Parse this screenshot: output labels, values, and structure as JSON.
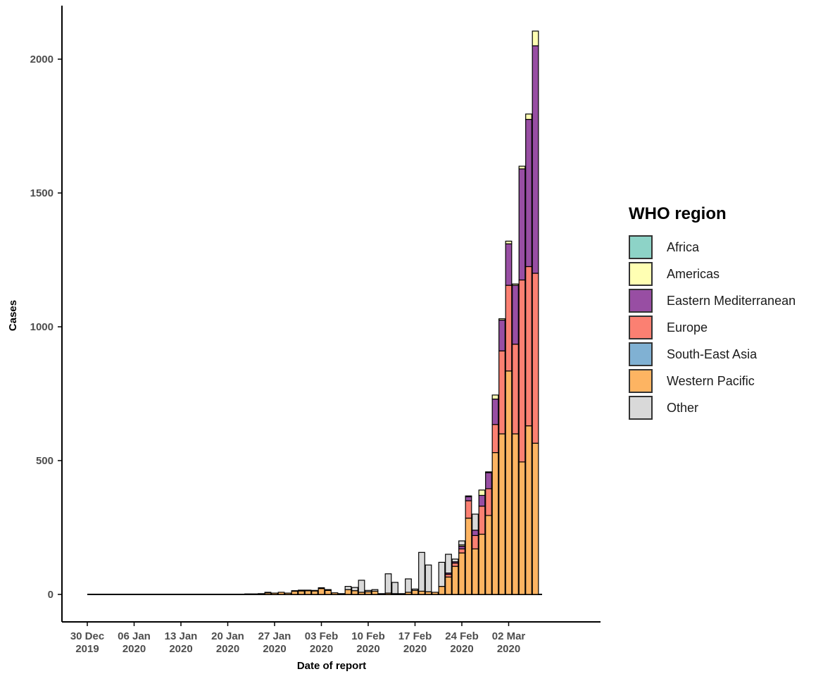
{
  "chart_data": {
    "type": "bar",
    "stacked": true,
    "xlabel": "Date of report",
    "ylabel": "Cases",
    "ylim": [
      -100,
      2200
    ],
    "yticks": [
      0,
      500,
      1000,
      1500,
      2000
    ],
    "xticks": [
      {
        "date": "2019-12-30",
        "line1": "30 Dec",
        "line2": "2019"
      },
      {
        "date": "2020-01-06",
        "line1": "06 Jan",
        "line2": "2020"
      },
      {
        "date": "2020-01-13",
        "line1": "13 Jan",
        "line2": "2020"
      },
      {
        "date": "2020-01-20",
        "line1": "20 Jan",
        "line2": "2020"
      },
      {
        "date": "2020-01-27",
        "line1": "27 Jan",
        "line2": "2020"
      },
      {
        "date": "2020-02-03",
        "line1": "03 Feb",
        "line2": "2020"
      },
      {
        "date": "2020-02-10",
        "line1": "10 Feb",
        "line2": "2020"
      },
      {
        "date": "2020-02-17",
        "line1": "17 Feb",
        "line2": "2020"
      },
      {
        "date": "2020-02-24",
        "line1": "24 Feb",
        "line2": "2020"
      },
      {
        "date": "2020-03-02",
        "line1": "02 Mar",
        "line2": "2020"
      }
    ],
    "legend_title": "WHO region",
    "legend_position": "right",
    "series": [
      {
        "name": "Africa",
        "color": "#8dd3c7"
      },
      {
        "name": "Americas",
        "color": "#ffffb3"
      },
      {
        "name": "Eastern Mediterranean",
        "color": "#984ea3"
      },
      {
        "name": "Europe",
        "color": "#fb8072"
      },
      {
        "name": "South-East Asia",
        "color": "#80b1d3"
      },
      {
        "name": "Western Pacific",
        "color": "#fdb462"
      },
      {
        "name": "Other",
        "color": "#d9d9d9"
      }
    ],
    "stack_order": [
      "Western Pacific",
      "South-East Asia",
      "Europe",
      "Eastern Mediterranean",
      "Americas",
      "Africa",
      "Other"
    ],
    "bars": [
      {
        "date": "2019-12-31",
        "values": {
          "Western Pacific": 1
        }
      },
      {
        "date": "2020-01-01",
        "values": {
          "Western Pacific": 1
        }
      },
      {
        "date": "2020-01-02",
        "values": {
          "Western Pacific": 1
        }
      },
      {
        "date": "2020-01-03",
        "values": {
          "Western Pacific": 1
        }
      },
      {
        "date": "2020-01-04",
        "values": {
          "Western Pacific": 1
        }
      },
      {
        "date": "2020-01-05",
        "values": {
          "Western Pacific": 1
        }
      },
      {
        "date": "2020-01-06",
        "values": {
          "Western Pacific": 1
        }
      },
      {
        "date": "2020-01-07",
        "values": {
          "Western Pacific": 1
        }
      },
      {
        "date": "2020-01-08",
        "values": {
          "Western Pacific": 1
        }
      },
      {
        "date": "2020-01-09",
        "values": {
          "Western Pacific": 1
        }
      },
      {
        "date": "2020-01-10",
        "values": {
          "Western Pacific": 1
        }
      },
      {
        "date": "2020-01-11",
        "values": {
          "Western Pacific": 1
        }
      },
      {
        "date": "2020-01-12",
        "values": {
          "Western Pacific": 1
        }
      },
      {
        "date": "2020-01-13",
        "values": {
          "Western Pacific": 1
        }
      },
      {
        "date": "2020-01-14",
        "values": {
          "Western Pacific": 1
        }
      },
      {
        "date": "2020-01-15",
        "values": {
          "Western Pacific": 1
        }
      },
      {
        "date": "2020-01-16",
        "values": {
          "Western Pacific": 1
        }
      },
      {
        "date": "2020-01-17",
        "values": {
          "Western Pacific": 1
        }
      },
      {
        "date": "2020-01-18",
        "values": {
          "Western Pacific": 1
        }
      },
      {
        "date": "2020-01-19",
        "values": {
          "Western Pacific": 1
        }
      },
      {
        "date": "2020-01-20",
        "values": {
          "Western Pacific": 1
        }
      },
      {
        "date": "2020-01-21",
        "values": {
          "Western Pacific": 1
        }
      },
      {
        "date": "2020-01-22",
        "values": {
          "Western Pacific": 1
        }
      },
      {
        "date": "2020-01-23",
        "values": {
          "Western Pacific": 2
        }
      },
      {
        "date": "2020-01-24",
        "values": {
          "Western Pacific": 2
        }
      },
      {
        "date": "2020-01-25",
        "values": {
          "Western Pacific": 3
        }
      },
      {
        "date": "2020-01-26",
        "values": {
          "Western Pacific": 6,
          "Other": 2
        }
      },
      {
        "date": "2020-01-27",
        "values": {
          "Western Pacific": 5
        }
      },
      {
        "date": "2020-01-28",
        "values": {
          "Western Pacific": 8
        }
      },
      {
        "date": "2020-01-29",
        "values": {
          "Western Pacific": 5
        }
      },
      {
        "date": "2020-01-30",
        "values": {
          "Western Pacific": 12,
          "Other": 2
        }
      },
      {
        "date": "2020-01-31",
        "values": {
          "Western Pacific": 13,
          "Other": 3
        }
      },
      {
        "date": "2020-02-01",
        "values": {
          "Western Pacific": 14,
          "Other": 2
        }
      },
      {
        "date": "2020-02-02",
        "values": {
          "Western Pacific": 13,
          "Other": 2
        }
      },
      {
        "date": "2020-02-03",
        "values": {
          "Western Pacific": 22,
          "Other": 3
        }
      },
      {
        "date": "2020-02-04",
        "values": {
          "Western Pacific": 15,
          "Other": 3
        }
      },
      {
        "date": "2020-02-05",
        "values": {
          "Western Pacific": 6
        }
      },
      {
        "date": "2020-02-06",
        "values": {
          "Western Pacific": 3
        }
      },
      {
        "date": "2020-02-07",
        "values": {
          "Western Pacific": 18,
          "Other": 12
        }
      },
      {
        "date": "2020-02-08",
        "values": {
          "Western Pacific": 14,
          "Other": 12
        }
      },
      {
        "date": "2020-02-09",
        "values": {
          "Western Pacific": 8,
          "Other": 45
        }
      },
      {
        "date": "2020-02-10",
        "values": {
          "Western Pacific": 10,
          "Other": 5
        }
      },
      {
        "date": "2020-02-11",
        "values": {
          "Western Pacific": 12,
          "Other": 6
        }
      },
      {
        "date": "2020-02-12",
        "values": {
          "Western Pacific": 3
        }
      },
      {
        "date": "2020-02-13",
        "values": {
          "Western Pacific": 5,
          "Other": 72
        }
      },
      {
        "date": "2020-02-14",
        "values": {
          "Western Pacific": 3,
          "Other": 42
        }
      },
      {
        "date": "2020-02-15",
        "values": {
          "Western Pacific": 3
        }
      },
      {
        "date": "2020-02-16",
        "values": {
          "Western Pacific": 8,
          "Other": 50
        }
      },
      {
        "date": "2020-02-17",
        "values": {
          "Western Pacific": 15,
          "Other": 5
        }
      },
      {
        "date": "2020-02-18",
        "values": {
          "Western Pacific": 12,
          "Other": 145
        }
      },
      {
        "date": "2020-02-19",
        "values": {
          "Western Pacific": 10,
          "Other": 100
        }
      },
      {
        "date": "2020-02-20",
        "values": {
          "Western Pacific": 8
        }
      },
      {
        "date": "2020-02-21",
        "values": {
          "Western Pacific": 30,
          "Other": 90
        }
      },
      {
        "date": "2020-02-22",
        "values": {
          "Western Pacific": 65,
          "Europe": 10,
          "Eastern Mediterranean": 5,
          "Other": 70
        }
      },
      {
        "date": "2020-02-23",
        "values": {
          "Western Pacific": 105,
          "Europe": 12,
          "Eastern Mediterranean": 5,
          "Other": 10
        }
      },
      {
        "date": "2020-02-24",
        "values": {
          "Western Pacific": 155,
          "Europe": 15,
          "Eastern Mediterranean": 10,
          "Americas": 5,
          "Other": 15
        }
      },
      {
        "date": "2020-02-25",
        "values": {
          "Western Pacific": 285,
          "Europe": 65,
          "Eastern Mediterranean": 15,
          "Americas": 3
        }
      },
      {
        "date": "2020-02-26",
        "values": {
          "Western Pacific": 170,
          "Europe": 50,
          "Eastern Mediterranean": 20,
          "Other": 60
        }
      },
      {
        "date": "2020-02-27",
        "values": {
          "Western Pacific": 225,
          "Europe": 105,
          "Eastern Mediterranean": 40,
          "Americas": 20
        }
      },
      {
        "date": "2020-02-28",
        "values": {
          "Western Pacific": 295,
          "Europe": 100,
          "Eastern Mediterranean": 60,
          "Americas": 3
        }
      },
      {
        "date": "2020-02-29",
        "values": {
          "Western Pacific": 530,
          "Europe": 105,
          "Eastern Mediterranean": 95,
          "Americas": 15
        }
      },
      {
        "date": "2020-03-01",
        "values": {
          "Western Pacific": 600,
          "Europe": 310,
          "Eastern Mediterranean": 115,
          "Americas": 5
        }
      },
      {
        "date": "2020-03-02",
        "values": {
          "Western Pacific": 835,
          "Europe": 320,
          "Eastern Mediterranean": 155,
          "Americas": 10
        }
      },
      {
        "date": "2020-03-03",
        "values": {
          "Western Pacific": 600,
          "Europe": 335,
          "Eastern Mediterranean": 220,
          "Americas": 5
        }
      },
      {
        "date": "2020-03-04",
        "values": {
          "Western Pacific": 495,
          "Europe": 680,
          "Eastern Mediterranean": 415,
          "Americas": 10
        }
      },
      {
        "date": "2020-03-05",
        "values": {
          "Western Pacific": 630,
          "Europe": 595,
          "Eastern Mediterranean": 550,
          "Americas": 20
        }
      },
      {
        "date": "2020-03-06",
        "values": {
          "Western Pacific": 565,
          "Europe": 635,
          "Eastern Mediterranean": 850,
          "Americas": 55
        }
      }
    ]
  }
}
